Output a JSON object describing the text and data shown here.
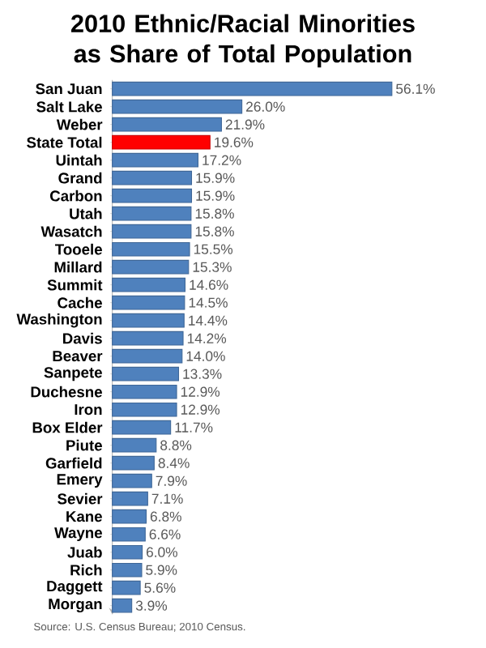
{
  "chart_data": {
    "type": "bar",
    "orientation": "horizontal",
    "title": "2010 Ethnic/Racial Minorities as Share of Total Population",
    "categories": [
      "San Juan",
      "Salt Lake",
      "Weber",
      "State Total",
      "Uintah",
      "Grand",
      "Carbon",
      "Utah",
      "Wasatch",
      "Tooele",
      "Millard",
      "Summit",
      "Cache",
      "Washington",
      "Davis",
      "Beaver",
      "Sanpete",
      "Duchesne",
      "Iron",
      "Box Elder",
      "Piute",
      "Garfield",
      "Emery",
      "Sevier",
      "Kane",
      "Wayne",
      "Juab",
      "Rich",
      "Daggett",
      "Morgan"
    ],
    "values": [
      56.1,
      26.0,
      21.9,
      19.6,
      17.2,
      15.9,
      15.9,
      15.8,
      15.8,
      15.5,
      15.3,
      14.6,
      14.5,
      14.4,
      14.2,
      14.0,
      13.3,
      12.9,
      12.9,
      11.7,
      8.8,
      8.4,
      7.9,
      7.1,
      6.8,
      6.6,
      6.0,
      5.9,
      5.6,
      3.9
    ],
    "value_labels": [
      "56.1%",
      "26.0%",
      "21.9%",
      "19.6%",
      "17.2%",
      "15.9%",
      "15.9%",
      "15.8%",
      "15.8%",
      "15.5%",
      "15.3%",
      "14.6%",
      "14.5%",
      "14.4%",
      "14.2%",
      "14.0%",
      "13.3%",
      "12.9%",
      "12.9%",
      "11.7%",
      "8.8%",
      "8.4%",
      "7.9%",
      "7.1%",
      "6.8%",
      "6.6%",
      "6.0%",
      "5.9%",
      "5.6%",
      "3.9%"
    ],
    "colors": [
      "#4f81bd",
      "#4f81bd",
      "#4f81bd",
      "#ff0000",
      "#4f81bd",
      "#4f81bd",
      "#4f81bd",
      "#4f81bd",
      "#4f81bd",
      "#4f81bd",
      "#4f81bd",
      "#4f81bd",
      "#4f81bd",
      "#4f81bd",
      "#4f81bd",
      "#4f81bd",
      "#4f81bd",
      "#4f81bd",
      "#4f81bd",
      "#4f81bd",
      "#4f81bd",
      "#4f81bd",
      "#4f81bd",
      "#4f81bd",
      "#4f81bd",
      "#4f81bd",
      "#4f81bd",
      "#4f81bd",
      "#4f81bd",
      "#4f81bd"
    ],
    "tick_labels": "y",
    "annotations": [
      "Source: U.S. Census Bureau; 2010 Census."
    ]
  }
}
